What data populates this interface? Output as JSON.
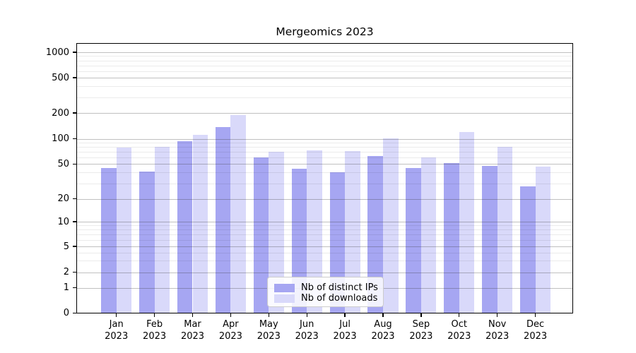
{
  "chart_data": {
    "type": "bar",
    "title": "Mergeomics 2023",
    "x_labels": [
      [
        "Jan",
        "2023"
      ],
      [
        "Feb",
        "2023"
      ],
      [
        "Mar",
        "2023"
      ],
      [
        "Apr",
        "2023"
      ],
      [
        "May",
        "2023"
      ],
      [
        "Jun",
        "2023"
      ],
      [
        "Jul",
        "2023"
      ],
      [
        "Aug",
        "2023"
      ],
      [
        "Sep",
        "2023"
      ],
      [
        "Oct",
        "2023"
      ],
      [
        "Nov",
        "2023"
      ],
      [
        "Dec",
        "2023"
      ]
    ],
    "series": [
      {
        "name": "Nb of distinct IPs",
        "color": "#a6a6f2",
        "values": [
          45,
          41,
          94,
          137,
          60,
          44,
          40,
          62,
          45,
          51,
          48,
          28
        ]
      },
      {
        "name": "Nb of downloads",
        "color": "#d9d9fa",
        "values": [
          78,
          80,
          112,
          190,
          70,
          73,
          72,
          101,
          60,
          120,
          81,
          47
        ]
      }
    ],
    "y_ticks": [
      0,
      1,
      2,
      5,
      10,
      20,
      50,
      100,
      200,
      500,
      1000
    ],
    "y_minor_ticks": [
      3,
      4,
      6,
      7,
      8,
      9,
      30,
      40,
      60,
      70,
      80,
      90,
      300,
      400,
      600,
      700,
      800,
      900
    ],
    "y_scale": "symlog",
    "ylim": [
      0,
      1276
    ],
    "grid": "major+minor",
    "legend_position": "bottom-center",
    "xlabel": "",
    "ylabel": ""
  },
  "colors": {
    "bar_ips": "#a6a6f2",
    "bar_downloads": "#d9d9fa",
    "major_grid": "rgba(60,60,60,0.32)",
    "minor_grid": "rgba(0,0,0,0.08)",
    "spine": "#000000",
    "legend_border": "#cccccc",
    "background": "#ffffff"
  }
}
